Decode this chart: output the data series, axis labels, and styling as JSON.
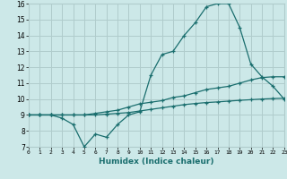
{
  "title": "",
  "xlabel": "Humidex (Indice chaleur)",
  "xlim": [
    0,
    23
  ],
  "ylim": [
    7,
    16
  ],
  "xticks": [
    0,
    1,
    2,
    3,
    4,
    5,
    6,
    7,
    8,
    9,
    10,
    11,
    12,
    13,
    14,
    15,
    16,
    17,
    18,
    19,
    20,
    21,
    22,
    23
  ],
  "yticks": [
    7,
    8,
    9,
    10,
    11,
    12,
    13,
    14,
    15,
    16
  ],
  "background_color": "#cce8e8",
  "grid_color": "#b0cccc",
  "line_color": "#1a6e6e",
  "series": [
    {
      "x": [
        0,
        1,
        2,
        3,
        4,
        5,
        6,
        7,
        8,
        9,
        10,
        11,
        12,
        13,
        14,
        15,
        16,
        17,
        18,
        19,
        20,
        21,
        22,
        23
      ],
      "y": [
        9,
        9,
        9,
        8.8,
        8.4,
        7,
        7.8,
        7.6,
        8.4,
        9,
        9.2,
        11.5,
        12.8,
        13,
        14,
        14.8,
        15.8,
        16,
        16,
        14.5,
        12.2,
        11.4,
        10.8,
        10
      ]
    },
    {
      "x": [
        0,
        1,
        2,
        3,
        4,
        5,
        6,
        7,
        8,
        9,
        10,
        11,
        12,
        13,
        14,
        15,
        16,
        17,
        18,
        19,
        20,
        21,
        22,
        23
      ],
      "y": [
        9,
        9,
        9,
        9,
        9,
        9,
        9.1,
        9.2,
        9.3,
        9.5,
        9.7,
        9.8,
        9.9,
        10.1,
        10.2,
        10.4,
        10.6,
        10.7,
        10.8,
        11.0,
        11.2,
        11.35,
        11.4,
        11.4
      ]
    },
    {
      "x": [
        0,
        1,
        2,
        3,
        4,
        5,
        6,
        7,
        8,
        9,
        10,
        11,
        12,
        13,
        14,
        15,
        16,
        17,
        18,
        19,
        20,
        21,
        22,
        23
      ],
      "y": [
        9,
        9,
        9,
        9,
        9,
        9,
        9.0,
        9.05,
        9.1,
        9.15,
        9.25,
        9.35,
        9.45,
        9.55,
        9.65,
        9.72,
        9.78,
        9.82,
        9.87,
        9.92,
        9.96,
        10.0,
        10.03,
        10.05
      ]
    }
  ]
}
